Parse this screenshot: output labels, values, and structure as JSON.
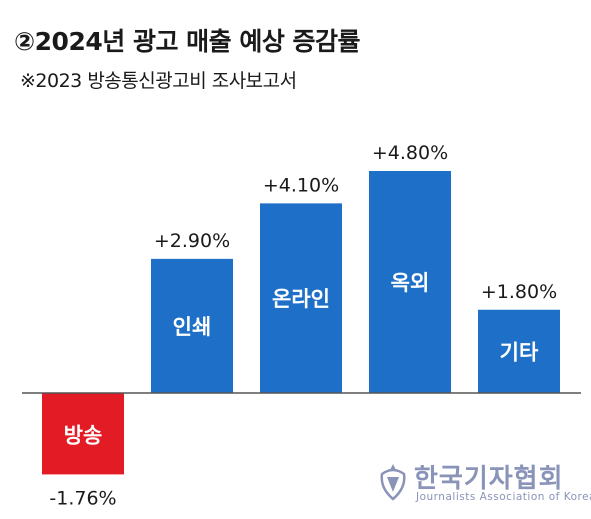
{
  "header": {
    "title": "②2024년 광고 매출 예상 증감률",
    "subtitle": "※2023 방송통신광고비 조사보고서"
  },
  "colors": {
    "positive": "#1e6fc8",
    "negative": "#e31b24",
    "baseline": "#555555",
    "logo": "#8a93b8"
  },
  "chart_data": {
    "type": "bar",
    "title": "②2024년 광고 매출 예상 증감률",
    "subtitle": "※2023 방송통신광고비 조사보고서",
    "categories": [
      "방송",
      "인쇄",
      "온라인",
      "옥외",
      "기타"
    ],
    "values": [
      -1.76,
      2.9,
      4.1,
      4.8,
      1.8
    ],
    "value_labels": [
      "-1.76%",
      "+2.90%",
      "+4.10%",
      "+4.80%",
      "+1.80%"
    ],
    "unit": "%",
    "xlabel": "",
    "ylabel": "",
    "ylim": [
      -1.76,
      4.8
    ],
    "grid": false,
    "legend": "none"
  },
  "logo": {
    "name": "한국기자협회",
    "english": "Journalists Association of Korea",
    "icon": "journalists-association-emblem-icon"
  }
}
